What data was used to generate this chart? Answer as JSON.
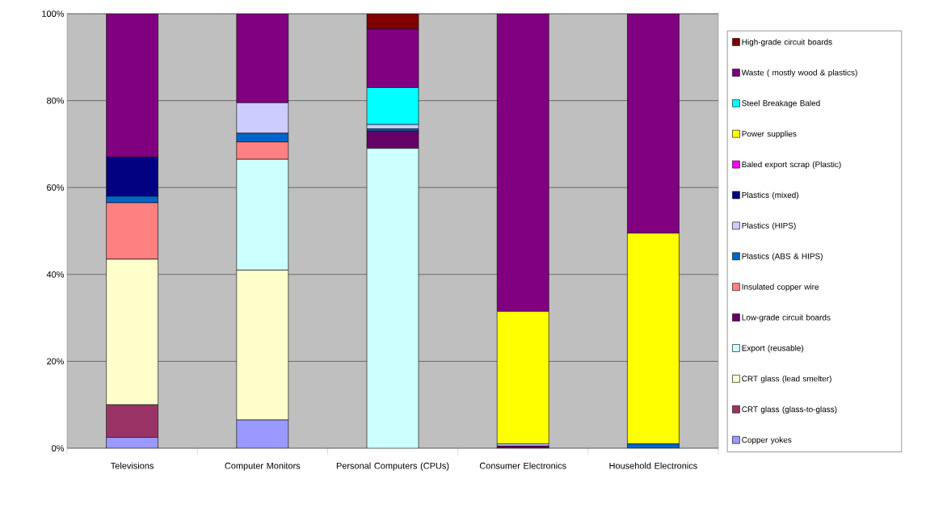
{
  "chart_data": {
    "type": "bar",
    "stacked": true,
    "grid": "y",
    "legend": "right",
    "categories": [
      "Televisions",
      "Computer Monitors",
      "Personal Computers (CPUs)",
      "Consumer Electronics",
      "Household Electronics"
    ],
    "ylim": [
      0,
      100
    ],
    "yticks": [
      {
        "value": 0,
        "label": "0%"
      },
      {
        "value": 20,
        "label": "20%"
      },
      {
        "value": 40,
        "label": "40%"
      },
      {
        "value": 60,
        "label": "60%"
      },
      {
        "value": 80,
        "label": "80%"
      },
      {
        "value": 100,
        "label": "100%"
      }
    ],
    "series": [
      {
        "name": "Copper yokes",
        "color": "#9999ff",
        "values": [
          2.5,
          6.5,
          0,
          0,
          0
        ]
      },
      {
        "name": "CRT glass (glass-to-glass)",
        "color": "#993366",
        "values": [
          7.5,
          0,
          0,
          0,
          0
        ]
      },
      {
        "name": "CRT glass (lead smelter)",
        "color": "#ffffcc",
        "values": [
          33.5,
          34.5,
          0,
          0,
          0
        ]
      },
      {
        "name": "Export (reusable)",
        "color": "#ccffff",
        "values": [
          0,
          25.5,
          69,
          0,
          0
        ]
      },
      {
        "name": "Low-grade circuit boards",
        "color": "#660066",
        "values": [
          0,
          0,
          4,
          0.5,
          0
        ]
      },
      {
        "name": "Insulated copper wire",
        "color": "#ff8080",
        "values": [
          13,
          4,
          0,
          0,
          0
        ]
      },
      {
        "name": "Plastics (ABS & HIPS)",
        "color": "#0066cc",
        "values": [
          1.5,
          2,
          0.5,
          0,
          1
        ]
      },
      {
        "name": "Plastics (HIPS)",
        "color": "#ccccff",
        "values": [
          0,
          7,
          1,
          0.5,
          0
        ]
      },
      {
        "name": "Plastics (mixed)",
        "color": "#000080",
        "values": [
          9,
          0,
          0,
          0,
          0
        ]
      },
      {
        "name": "Baled export scrap (Plastic)",
        "color": "#ff00ff",
        "values": [
          0,
          0,
          0,
          0,
          0
        ]
      },
      {
        "name": "Power supplies",
        "color": "#ffff00",
        "values": [
          0,
          0,
          0,
          30.5,
          48.5
        ]
      },
      {
        "name": "Steel Breakage Baled",
        "color": "#00ffff",
        "values": [
          0,
          0,
          8.5,
          0,
          0
        ]
      },
      {
        "name": "Waste ( mostly wood & plastics)",
        "color": "#800080",
        "values": [
          33,
          20.5,
          13.5,
          68.5,
          50.5
        ]
      },
      {
        "name": "High-grade circuit boards",
        "color": "#800000",
        "values": [
          0,
          0,
          3.5,
          0,
          0
        ]
      }
    ]
  }
}
